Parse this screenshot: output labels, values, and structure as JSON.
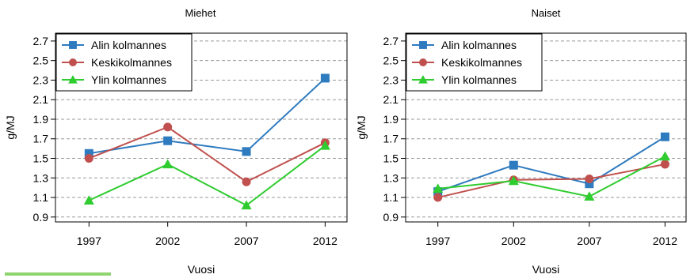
{
  "chart_data": [
    {
      "type": "line",
      "title": "Miehet",
      "xlabel": "Vuosi",
      "ylabel": "g/MJ",
      "categories": [
        "1997",
        "2002",
        "2007",
        "2012"
      ],
      "yticks": [
        "0.9",
        "1.1",
        "1.3",
        "1.5",
        "1.7",
        "1.9",
        "2.1",
        "2.3",
        "2.5",
        "2.7"
      ],
      "ylim": [
        0.85,
        2.78
      ],
      "grid": "horizontal-dashed",
      "legend": "top-left",
      "series": [
        {
          "name": "Alin kolmannes",
          "color": "#2f7bbf",
          "marker": "square",
          "values": [
            1.55,
            1.68,
            1.57,
            2.32
          ]
        },
        {
          "name": "Keskikolmannes",
          "color": "#c0504d",
          "marker": "circle",
          "values": [
            1.5,
            1.82,
            1.26,
            1.66
          ]
        },
        {
          "name": "Ylin kolmannes",
          "color": "#2ecc2e",
          "marker": "triangle",
          "values": [
            1.07,
            1.44,
            1.02,
            1.63
          ]
        }
      ]
    },
    {
      "type": "line",
      "title": "Naiset",
      "xlabel": "Vuosi",
      "ylabel": "g/MJ",
      "categories": [
        "1997",
        "2002",
        "2007",
        "2012"
      ],
      "yticks": [
        "0.9",
        "1.1",
        "1.3",
        "1.5",
        "1.7",
        "1.9",
        "2.1",
        "2.3",
        "2.5",
        "2.7"
      ],
      "ylim": [
        0.85,
        2.78
      ],
      "grid": "horizontal-dashed",
      "legend": "top-left",
      "series": [
        {
          "name": "Alin kolmannes",
          "color": "#2f7bbf",
          "marker": "square",
          "values": [
            1.16,
            1.43,
            1.24,
            1.72
          ]
        },
        {
          "name": "Keskikolmannes",
          "color": "#c0504d",
          "marker": "circle",
          "values": [
            1.1,
            1.28,
            1.29,
            1.44
          ]
        },
        {
          "name": "Ylin kolmannes",
          "color": "#2ecc2e",
          "marker": "triangle",
          "values": [
            1.19,
            1.27,
            1.11,
            1.52
          ]
        }
      ]
    }
  ],
  "decor": {
    "accent_color": "#8fd46e"
  }
}
